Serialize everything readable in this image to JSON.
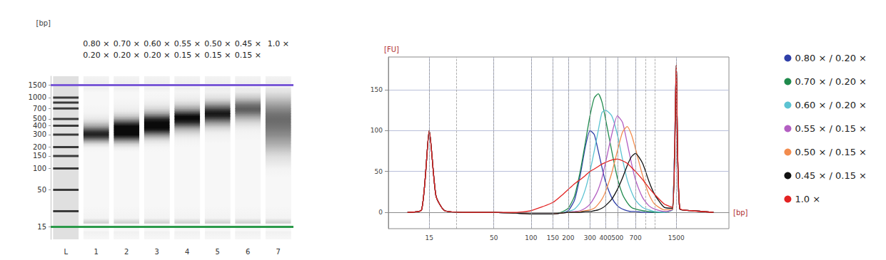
{
  "chart_data": [
    {
      "type": "gel",
      "ylabel": "[bp]",
      "categories": [
        "L",
        "1",
        "2",
        "3",
        "4",
        "5",
        "6",
        "7"
      ],
      "ylim": [
        10,
        2000
      ],
      "yticks": [
        15,
        50,
        100,
        150,
        200,
        300,
        400,
        500,
        700,
        1000,
        1500
      ],
      "log": "y",
      "ladder": [
        15,
        25,
        50,
        100,
        150,
        200,
        300,
        400,
        500,
        700,
        850,
        1000,
        1500
      ],
      "markers": [
        15,
        1500
      ]
    },
    {
      "type": "line",
      "xlabel": "[bp]",
      "ylabel": "[FU]",
      "x": [
        10,
        13,
        15,
        17,
        20,
        30,
        50,
        75,
        100,
        150,
        175,
        200,
        225,
        250,
        275,
        300,
        325,
        350,
        375,
        400,
        450,
        500,
        550,
        600,
        650,
        700,
        800,
        900,
        1000,
        1200,
        1400,
        1500,
        1600,
        2000,
        3000
      ],
      "xlim": [
        7,
        4000
      ],
      "xticks": [
        15,
        50,
        100,
        150,
        200,
        300,
        400,
        500,
        700,
        1500
      ],
      "log": "x",
      "ylim": [
        -20,
        190
      ],
      "yticks": [
        0,
        50,
        100,
        150
      ],
      "grid": true,
      "legend": "right",
      "series": [
        {
          "name": "0.80 × / 0.20 ×",
          "color": "#2f3fa8",
          "values": [
            0,
            3,
            100,
            20,
            2,
            0,
            0,
            -1,
            -2,
            -2,
            -1,
            2,
            15,
            45,
            80,
            100,
            95,
            75,
            55,
            38,
            18,
            8,
            4,
            2,
            1,
            1,
            0,
            0,
            0,
            0,
            4,
            180,
            4,
            2,
            0
          ]
        },
        {
          "name": "0.70 × / 0.20 ×",
          "color": "#1f8a4c",
          "values": [
            0,
            3,
            100,
            20,
            2,
            0,
            0,
            -1,
            -2,
            -2,
            0,
            5,
            20,
            50,
            85,
            118,
            140,
            145,
            135,
            115,
            75,
            42,
            22,
            12,
            6,
            4,
            2,
            1,
            0,
            0,
            4,
            180,
            4,
            2,
            0
          ]
        },
        {
          "name": "0.60 × / 0.20 ×",
          "color": "#5cc3d2",
          "values": [
            0,
            3,
            100,
            20,
            2,
            0,
            0,
            -1,
            -2,
            -2,
            -1,
            1,
            4,
            12,
            28,
            50,
            75,
            100,
            122,
            125,
            118,
            95,
            65,
            40,
            25,
            15,
            6,
            3,
            1,
            0,
            4,
            180,
            4,
            2,
            0
          ]
        },
        {
          "name": "0.55 × / 0.15 ×",
          "color": "#b35fc2",
          "values": [
            0,
            3,
            100,
            20,
            2,
            0,
            0,
            -1,
            -2,
            -2,
            -1,
            0,
            1,
            2,
            5,
            10,
            18,
            28,
            42,
            60,
            95,
            118,
            110,
            85,
            60,
            40,
            18,
            8,
            4,
            1,
            4,
            180,
            4,
            2,
            0
          ]
        },
        {
          "name": "0.50 × / 0.15 ×",
          "color": "#f28c4e",
          "values": [
            0,
            3,
            100,
            20,
            2,
            0,
            0,
            -1,
            -2,
            -2,
            -1,
            0,
            0,
            1,
            2,
            3,
            5,
            10,
            16,
            25,
            48,
            75,
            98,
            105,
            95,
            78,
            45,
            22,
            10,
            3,
            4,
            180,
            4,
            2,
            0
          ]
        },
        {
          "name": "0.45 × / 0.15 ×",
          "color": "#111111",
          "values": [
            0,
            3,
            100,
            20,
            2,
            0,
            0,
            -1,
            -2,
            -2,
            -1,
            0,
            0,
            0,
            1,
            1,
            2,
            3,
            5,
            8,
            16,
            28,
            42,
            57,
            68,
            72,
            60,
            38,
            22,
            6,
            5,
            180,
            4,
            2,
            0
          ]
        },
        {
          "name": "1.0 ×",
          "color": "#e32222",
          "values": [
            0,
            3,
            100,
            20,
            2,
            0,
            0,
            0,
            2,
            12,
            20,
            28,
            35,
            40,
            45,
            50,
            53,
            56,
            59,
            61,
            64,
            65,
            63,
            60,
            55,
            50,
            40,
            30,
            22,
            10,
            6,
            180,
            5,
            2,
            0
          ]
        }
      ]
    }
  ]
}
